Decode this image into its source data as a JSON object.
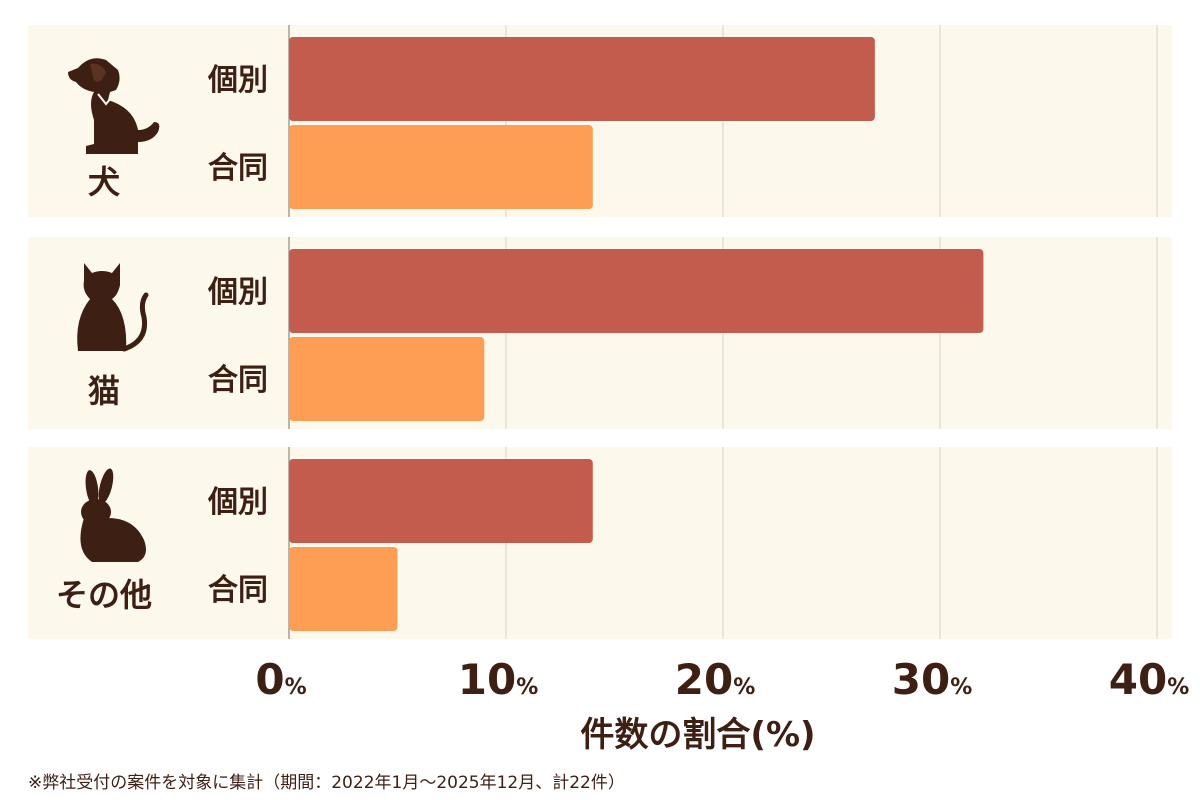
{
  "chart_data": {
    "type": "bar",
    "orientation": "horizontal",
    "xlabel": "件数の割合(%)",
    "xlim": [
      0,
      40
    ],
    "xticks": [
      0,
      10,
      20,
      30,
      40
    ],
    "tick_suffix": "%",
    "groups": [
      {
        "name": "犬",
        "icon": "dog-icon",
        "bars": [
          {
            "label": "個別",
            "value": 27
          },
          {
            "label": "合同",
            "value": 14
          }
        ]
      },
      {
        "name": "猫",
        "icon": "cat-icon",
        "bars": [
          {
            "label": "個別",
            "value": 32
          },
          {
            "label": "合同",
            "value": 9
          }
        ]
      },
      {
        "name": "その他",
        "icon": "rabbit-icon",
        "bars": [
          {
            "label": "個別",
            "value": 14
          },
          {
            "label": "合同",
            "value": 5
          }
        ]
      }
    ],
    "colors": {
      "個別": "#c45c4e",
      "合同": "#fd9e54",
      "panel": "#fdf8ec",
      "grid": "#d9d2c3",
      "text": "#3d1f14"
    },
    "grid": true
  },
  "footnote": "※弊社受付の案件を対象に集計（期間：2022年1月〜2025年12月、計22件）"
}
